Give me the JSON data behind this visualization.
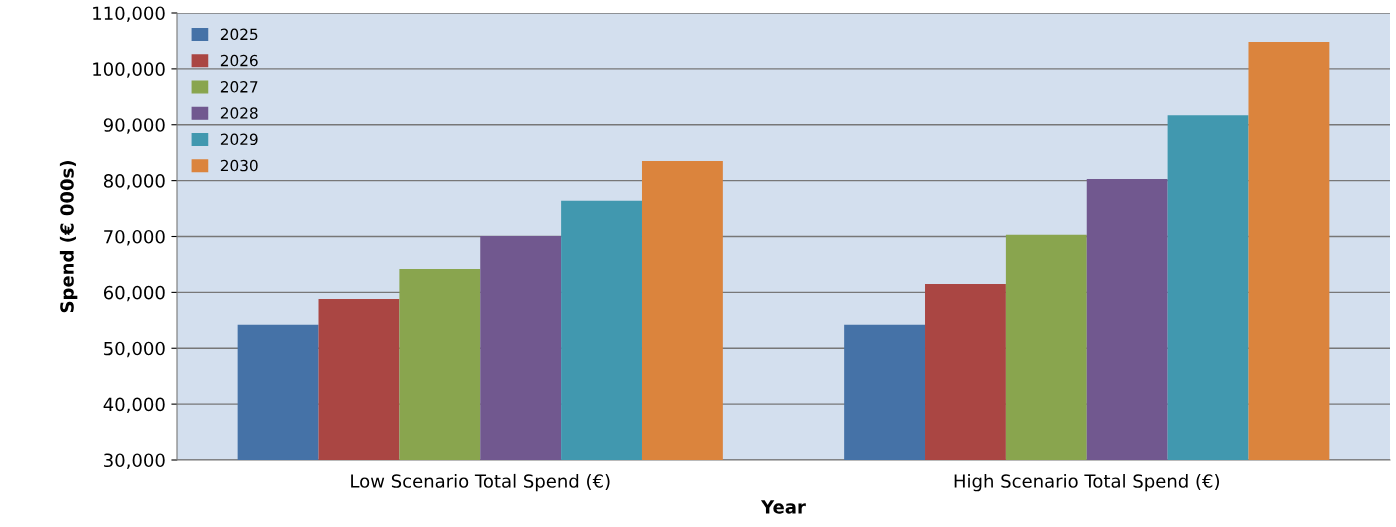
{
  "chart_data": {
    "type": "bar",
    "categories": [
      "Low Scenario Total Spend (€)",
      "High Scenario Total Spend (€)"
    ],
    "xlabel": "Year",
    "ylabel": "Spend (€ 000s)",
    "series": [
      {
        "name": "2025",
        "color": "#4572a7",
        "values": [
          54200,
          54200
        ]
      },
      {
        "name": "2026",
        "color": "#aa4643",
        "values": [
          58800,
          61500
        ]
      },
      {
        "name": "2027",
        "color": "#89a54e",
        "values": [
          64200,
          70300
        ]
      },
      {
        "name": "2028",
        "color": "#71588f",
        "values": [
          70100,
          80300
        ]
      },
      {
        "name": "2029",
        "color": "#4198af",
        "values": [
          76400,
          91700
        ]
      },
      {
        "name": "2030",
        "color": "#db843d",
        "values": [
          83500,
          104800
        ]
      }
    ],
    "ylim": [
      30000,
      110000
    ],
    "yticks": [
      {
        "value": 30000,
        "label": "30,000"
      },
      {
        "value": 40000,
        "label": "40,000"
      },
      {
        "value": 50000,
        "label": "50,000"
      },
      {
        "value": 60000,
        "label": "60,000"
      },
      {
        "value": 70000,
        "label": "70,000"
      },
      {
        "value": 80000,
        "label": "80,000"
      },
      {
        "value": 90000,
        "label": "90,000"
      },
      {
        "value": 100000,
        "label": "100,000"
      },
      {
        "value": 110000,
        "label": "110,000"
      }
    ],
    "grid": "y",
    "legend": "top left"
  }
}
